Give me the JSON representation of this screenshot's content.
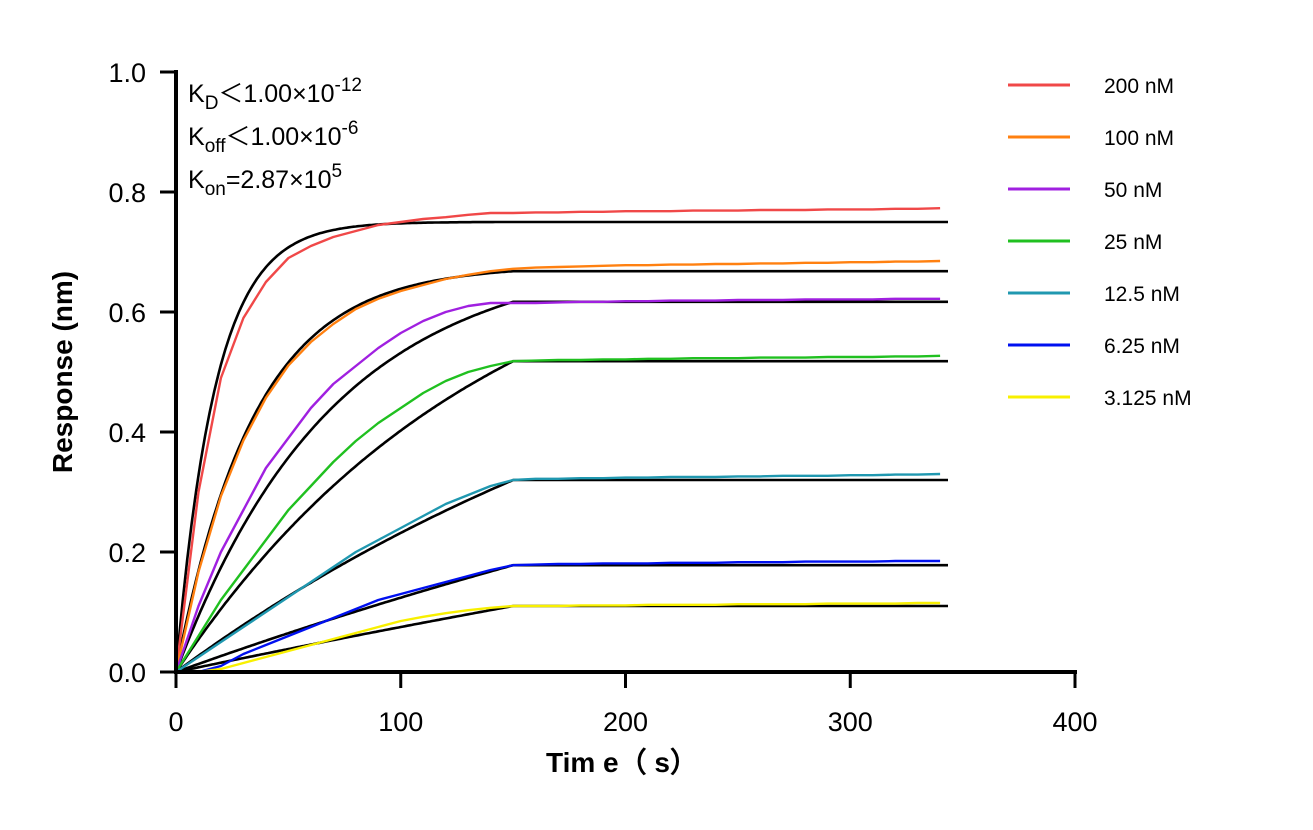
{
  "chart_data": {
    "type": "line",
    "xlabel": "Tim e（ s）",
    "ylabel": "Response (nm)",
    "xlim": [
      0,
      400
    ],
    "ylim": [
      0,
      1.0
    ],
    "xticks": [
      "0",
      "100",
      "200",
      "300",
      "400"
    ],
    "yticks": [
      "0.0",
      "0.2",
      "0.4",
      "0.6",
      "0.8",
      "1.0"
    ],
    "grid": false,
    "legend_placement": "right",
    "annotations": [
      {
        "main": "K",
        "sub": "D",
        "rest": "＜1.00×10",
        "sup": "-12"
      },
      {
        "main": "K",
        "sub": "off",
        "rest": "＜1.00×10",
        "sup": "-6"
      },
      {
        "main": "K",
        "sub": "on",
        "rest": "=2.87×10",
        "sup": "5"
      }
    ],
    "kon": 287000.0,
    "association_end_s": 150,
    "fit_color": "#000000",
    "x": [
      0,
      10,
      20,
      30,
      40,
      50,
      60,
      70,
      80,
      90,
      100,
      110,
      120,
      130,
      140,
      150,
      160,
      170,
      180,
      190,
      200,
      210,
      220,
      230,
      240,
      250,
      260,
      270,
      280,
      290,
      300,
      310,
      320,
      330,
      340
    ],
    "series": [
      {
        "name": "200 nM",
        "conc_nM": 200,
        "color": "#f04848",
        "fit_plateau": 0.75,
        "values": [
          0,
          0.3,
          0.49,
          0.59,
          0.65,
          0.69,
          0.71,
          0.725,
          0.735,
          0.745,
          0.75,
          0.755,
          0.758,
          0.762,
          0.765,
          0.765,
          0.766,
          0.766,
          0.767,
          0.767,
          0.768,
          0.768,
          0.768,
          0.769,
          0.769,
          0.769,
          0.77,
          0.77,
          0.77,
          0.771,
          0.771,
          0.771,
          0.772,
          0.772,
          0.773
        ]
      },
      {
        "name": "100 nM",
        "conc_nM": 100,
        "color": "#ff8010",
        "fit_plateau": 0.668,
        "values": [
          0,
          0.167,
          0.293,
          0.386,
          0.457,
          0.511,
          0.55,
          0.58,
          0.605,
          0.622,
          0.635,
          0.645,
          0.655,
          0.662,
          0.668,
          0.672,
          0.674,
          0.675,
          0.676,
          0.677,
          0.678,
          0.678,
          0.679,
          0.679,
          0.68,
          0.68,
          0.681,
          0.681,
          0.682,
          0.682,
          0.683,
          0.683,
          0.684,
          0.684,
          0.685
        ]
      },
      {
        "name": "50 nM",
        "conc_nM": 50,
        "color": "#a020e0",
        "fit_plateau": 0.617,
        "values": [
          0,
          0.11,
          0.2,
          0.27,
          0.34,
          0.39,
          0.44,
          0.48,
          0.51,
          0.54,
          0.565,
          0.585,
          0.6,
          0.61,
          0.615,
          0.615,
          0.615,
          0.616,
          0.617,
          0.617,
          0.618,
          0.618,
          0.619,
          0.619,
          0.619,
          0.62,
          0.62,
          0.62,
          0.621,
          0.621,
          0.621,
          0.621,
          0.622,
          0.622,
          0.622
        ]
      },
      {
        "name": "25 nM",
        "conc_nM": 25,
        "color": "#20c020",
        "fit_plateau": 0.518,
        "values": [
          0,
          0.06,
          0.12,
          0.17,
          0.22,
          0.27,
          0.31,
          0.35,
          0.385,
          0.415,
          0.44,
          0.465,
          0.485,
          0.5,
          0.51,
          0.518,
          0.519,
          0.52,
          0.52,
          0.521,
          0.521,
          0.522,
          0.522,
          0.523,
          0.523,
          0.523,
          0.524,
          0.524,
          0.524,
          0.525,
          0.525,
          0.525,
          0.526,
          0.526,
          0.527
        ]
      },
      {
        "name": "12.5 nM",
        "conc_nM": 12.5,
        "color": "#2098b0",
        "fit_plateau": 0.32,
        "values": [
          0,
          0.025,
          0.05,
          0.075,
          0.1,
          0.125,
          0.15,
          0.175,
          0.2,
          0.22,
          0.24,
          0.26,
          0.28,
          0.295,
          0.31,
          0.32,
          0.322,
          0.322,
          0.323,
          0.323,
          0.324,
          0.324,
          0.325,
          0.325,
          0.325,
          0.326,
          0.326,
          0.327,
          0.327,
          0.327,
          0.328,
          0.328,
          0.329,
          0.329,
          0.33
        ]
      },
      {
        "name": "6.25 nM",
        "conc_nM": 6.25,
        "color": "#0010f0",
        "fit_plateau": 0.178,
        "values": [
          0,
          0,
          0.01,
          0.03,
          0.045,
          0.06,
          0.075,
          0.09,
          0.105,
          0.12,
          0.13,
          0.14,
          0.15,
          0.16,
          0.17,
          0.178,
          0.179,
          0.18,
          0.18,
          0.181,
          0.181,
          0.181,
          0.182,
          0.182,
          0.182,
          0.183,
          0.183,
          0.183,
          0.184,
          0.184,
          0.184,
          0.184,
          0.185,
          0.185,
          0.185
        ]
      },
      {
        "name": "3.125 nM",
        "conc_nM": 3.125,
        "color": "#f8f000",
        "fit_plateau": 0.11,
        "values": [
          0,
          0,
          0.005,
          0.015,
          0.025,
          0.035,
          0.045,
          0.055,
          0.065,
          0.075,
          0.085,
          0.092,
          0.098,
          0.103,
          0.107,
          0.11,
          0.11,
          0.11,
          0.111,
          0.111,
          0.111,
          0.112,
          0.112,
          0.112,
          0.112,
          0.113,
          0.113,
          0.113,
          0.113,
          0.114,
          0.114,
          0.114,
          0.114,
          0.115,
          0.115
        ]
      }
    ]
  }
}
